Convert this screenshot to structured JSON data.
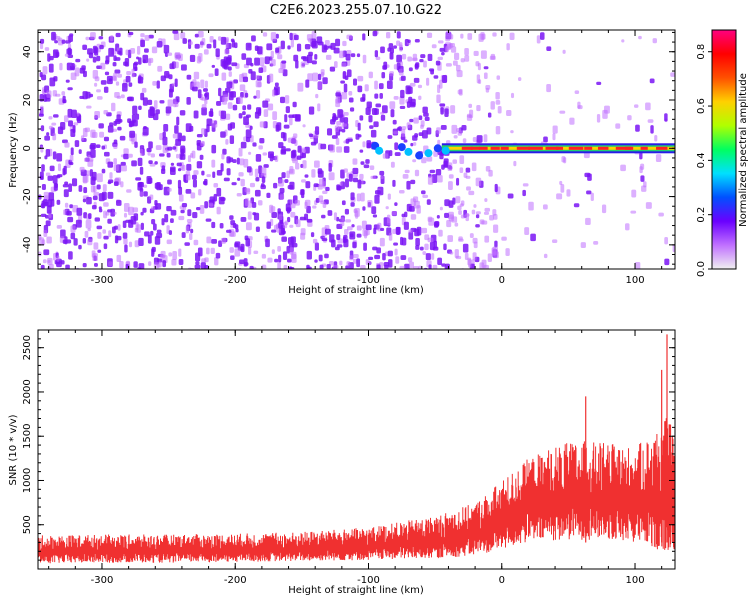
{
  "title": "C2E6.2023.255.07.10.G22",
  "colors": {
    "signal": "#f03030",
    "speckle": "#7a14f5",
    "colorbar": [
      "#f0f0f0",
      "#c070ff",
      "#6a00ff",
      "#0050ff",
      "#00e0ff",
      "#00ff60",
      "#b0ff00",
      "#ffd000",
      "#ff5000",
      "#ff0000",
      "#ff0080"
    ]
  },
  "chart_data": [
    {
      "type": "heatmap",
      "xlabel": "Height of straight line (km)",
      "ylabel": "Frequency (Hz)",
      "xlim": [
        -348,
        130
      ],
      "ylim": [
        -50,
        49
      ],
      "xticks": [
        -300,
        -200,
        -100,
        0,
        100
      ],
      "yticks": [
        -40,
        -20,
        0,
        20,
        40
      ],
      "colorbar": {
        "label": "Normalized spectral amplitude",
        "range": [
          0,
          0.88
        ],
        "ticks": [
          0.0,
          0.2,
          0.4,
          0.6,
          0.8
        ]
      },
      "signal_line": {
        "frequency_hz": 0,
        "x_start": -100,
        "x_end": 130,
        "peak_amplitude": 0.85
      }
    },
    {
      "type": "area",
      "xlabel": "Height of straight line (km)",
      "ylabel": "SNR (10 * v/v)",
      "xlim": [
        -348,
        130
      ],
      "ylim": [
        0,
        2700
      ],
      "xticks": [
        -300,
        -200,
        -100,
        0,
        100
      ],
      "yticks": [
        500,
        1000,
        1500,
        2000,
        2500
      ],
      "x": [
        -348,
        -300,
        -250,
        -200,
        -150,
        -100,
        -50,
        -20,
        0,
        20,
        40,
        60,
        80,
        100,
        115,
        125,
        130
      ],
      "y_low": [
        60,
        70,
        70,
        80,
        90,
        100,
        120,
        150,
        220,
        300,
        320,
        330,
        330,
        300,
        230,
        180,
        150
      ],
      "y_high": [
        380,
        390,
        390,
        400,
        420,
        470,
        600,
        750,
        1000,
        1250,
        1400,
        1450,
        1420,
        1380,
        1550,
        1750,
        1400
      ],
      "peaks": [
        [
          63,
          1950
        ],
        [
          120,
          2250
        ],
        [
          124,
          2650
        ],
        [
          128,
          1500
        ]
      ]
    }
  ]
}
